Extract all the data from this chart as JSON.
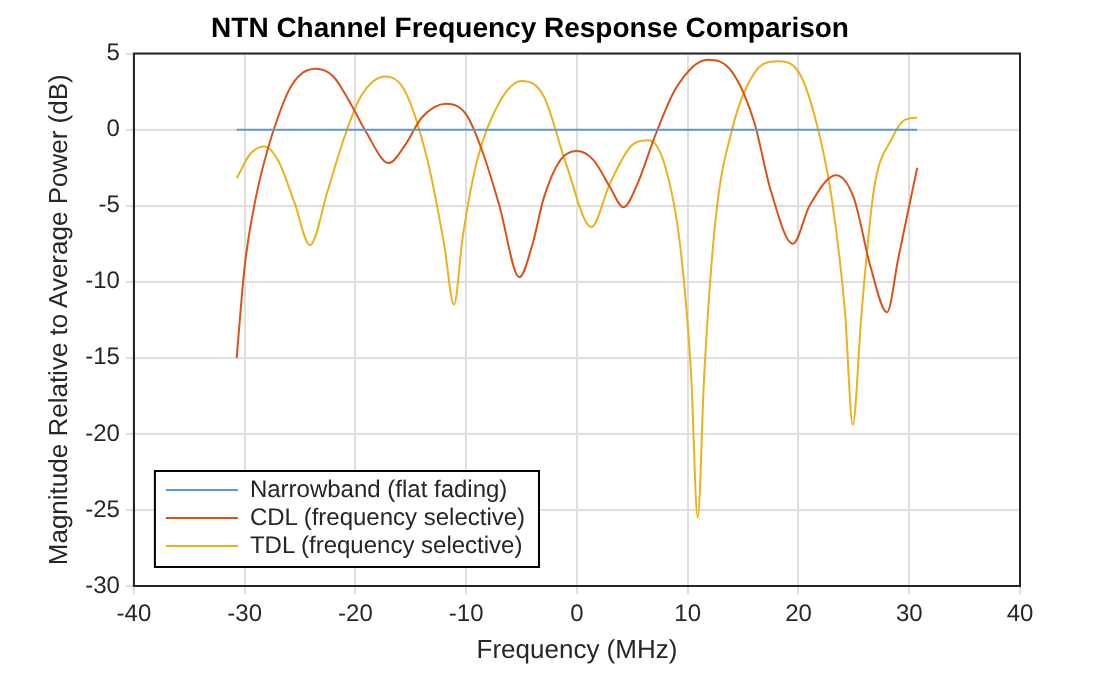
{
  "chart_data": {
    "type": "line",
    "title": "NTN Channel Frequency Response Comparison",
    "xlabel": "Frequency (MHz)",
    "ylabel": "Magnitude Relative to Average Power (dB)",
    "xlim": [
      -40,
      40
    ],
    "xticks": [
      -40,
      -30,
      -20,
      -10,
      0,
      10,
      20,
      30,
      40
    ],
    "ylim": [
      -30,
      5
    ],
    "yticks": [
      -30,
      -25,
      -20,
      -15,
      -10,
      -5,
      0,
      5
    ],
    "grid": true,
    "legend": "bottom left",
    "marker": "none",
    "line_style": "solid",
    "series": [
      {
        "name": "Narrowband (flat fading)",
        "color": "#5b9bd5",
        "x": [
          -30.72,
          30.72
        ],
        "values": [
          0,
          0
        ]
      },
      {
        "name": "CDL (frequency selective)",
        "color": "#d95319",
        "x": [
          -30.72,
          -30,
          -29,
          -28,
          -27,
          -26,
          -25,
          -23.6,
          -22,
          -20.5,
          -19,
          -17,
          -15.5,
          -14,
          -11.8,
          -10,
          -8.5,
          -7,
          -5.2,
          -4,
          -3,
          -1.5,
          0,
          1.5,
          3,
          4.2,
          5.5,
          7,
          9,
          11.8,
          14,
          16,
          17.5,
          19.5,
          21,
          23.4,
          25,
          26.5,
          28,
          29,
          30,
          30.72
        ],
        "values": [
          -15,
          -9,
          -4.5,
          -1.5,
          0.8,
          2.6,
          3.6,
          4,
          3.5,
          1.8,
          -0.2,
          -2.2,
          -1,
          0.8,
          1.7,
          1,
          -1.5,
          -5,
          -9.7,
          -7.5,
          -4.5,
          -2,
          -1.4,
          -2,
          -3.8,
          -5.1,
          -3.5,
          -0.5,
          2.8,
          4.6,
          3.8,
          0.5,
          -4,
          -7.5,
          -5,
          -3,
          -4.5,
          -9,
          -12,
          -8.5,
          -5,
          -2.5
        ]
      },
      {
        "name": "TDL (frequency selective)",
        "color": "#edb120",
        "x": [
          -30.72,
          -29.5,
          -28.2,
          -27,
          -25.5,
          -24.1,
          -22.5,
          -21,
          -19.5,
          -17.3,
          -15.5,
          -13.5,
          -12,
          -11.1,
          -10.3,
          -9,
          -7,
          -5,
          -3,
          -1,
          1.3,
          3,
          5,
          6.5,
          8,
          9.3,
          10.3,
          10.9,
          11.5,
          12.5,
          14,
          16,
          18.1,
          20,
          21.5,
          23,
          24.2,
          24.9,
          25.7,
          26.8,
          28.5,
          29.5,
          30.72
        ],
        "values": [
          -3.2,
          -1.6,
          -1.1,
          -2,
          -4.8,
          -7.6,
          -4,
          -0.5,
          2.2,
          3.5,
          2.5,
          -2,
          -7.5,
          -11.5,
          -7,
          -2,
          1.8,
          3.2,
          2.2,
          -2.2,
          -6.4,
          -3.5,
          -1,
          -0.7,
          -2.5,
          -7.5,
          -16,
          -25.5,
          -16,
          -6,
          0,
          3.7,
          4.5,
          3.8,
          0.8,
          -4.5,
          -12,
          -19.4,
          -12,
          -4,
          -0.5,
          0.6,
          0.8
        ]
      }
    ]
  }
}
